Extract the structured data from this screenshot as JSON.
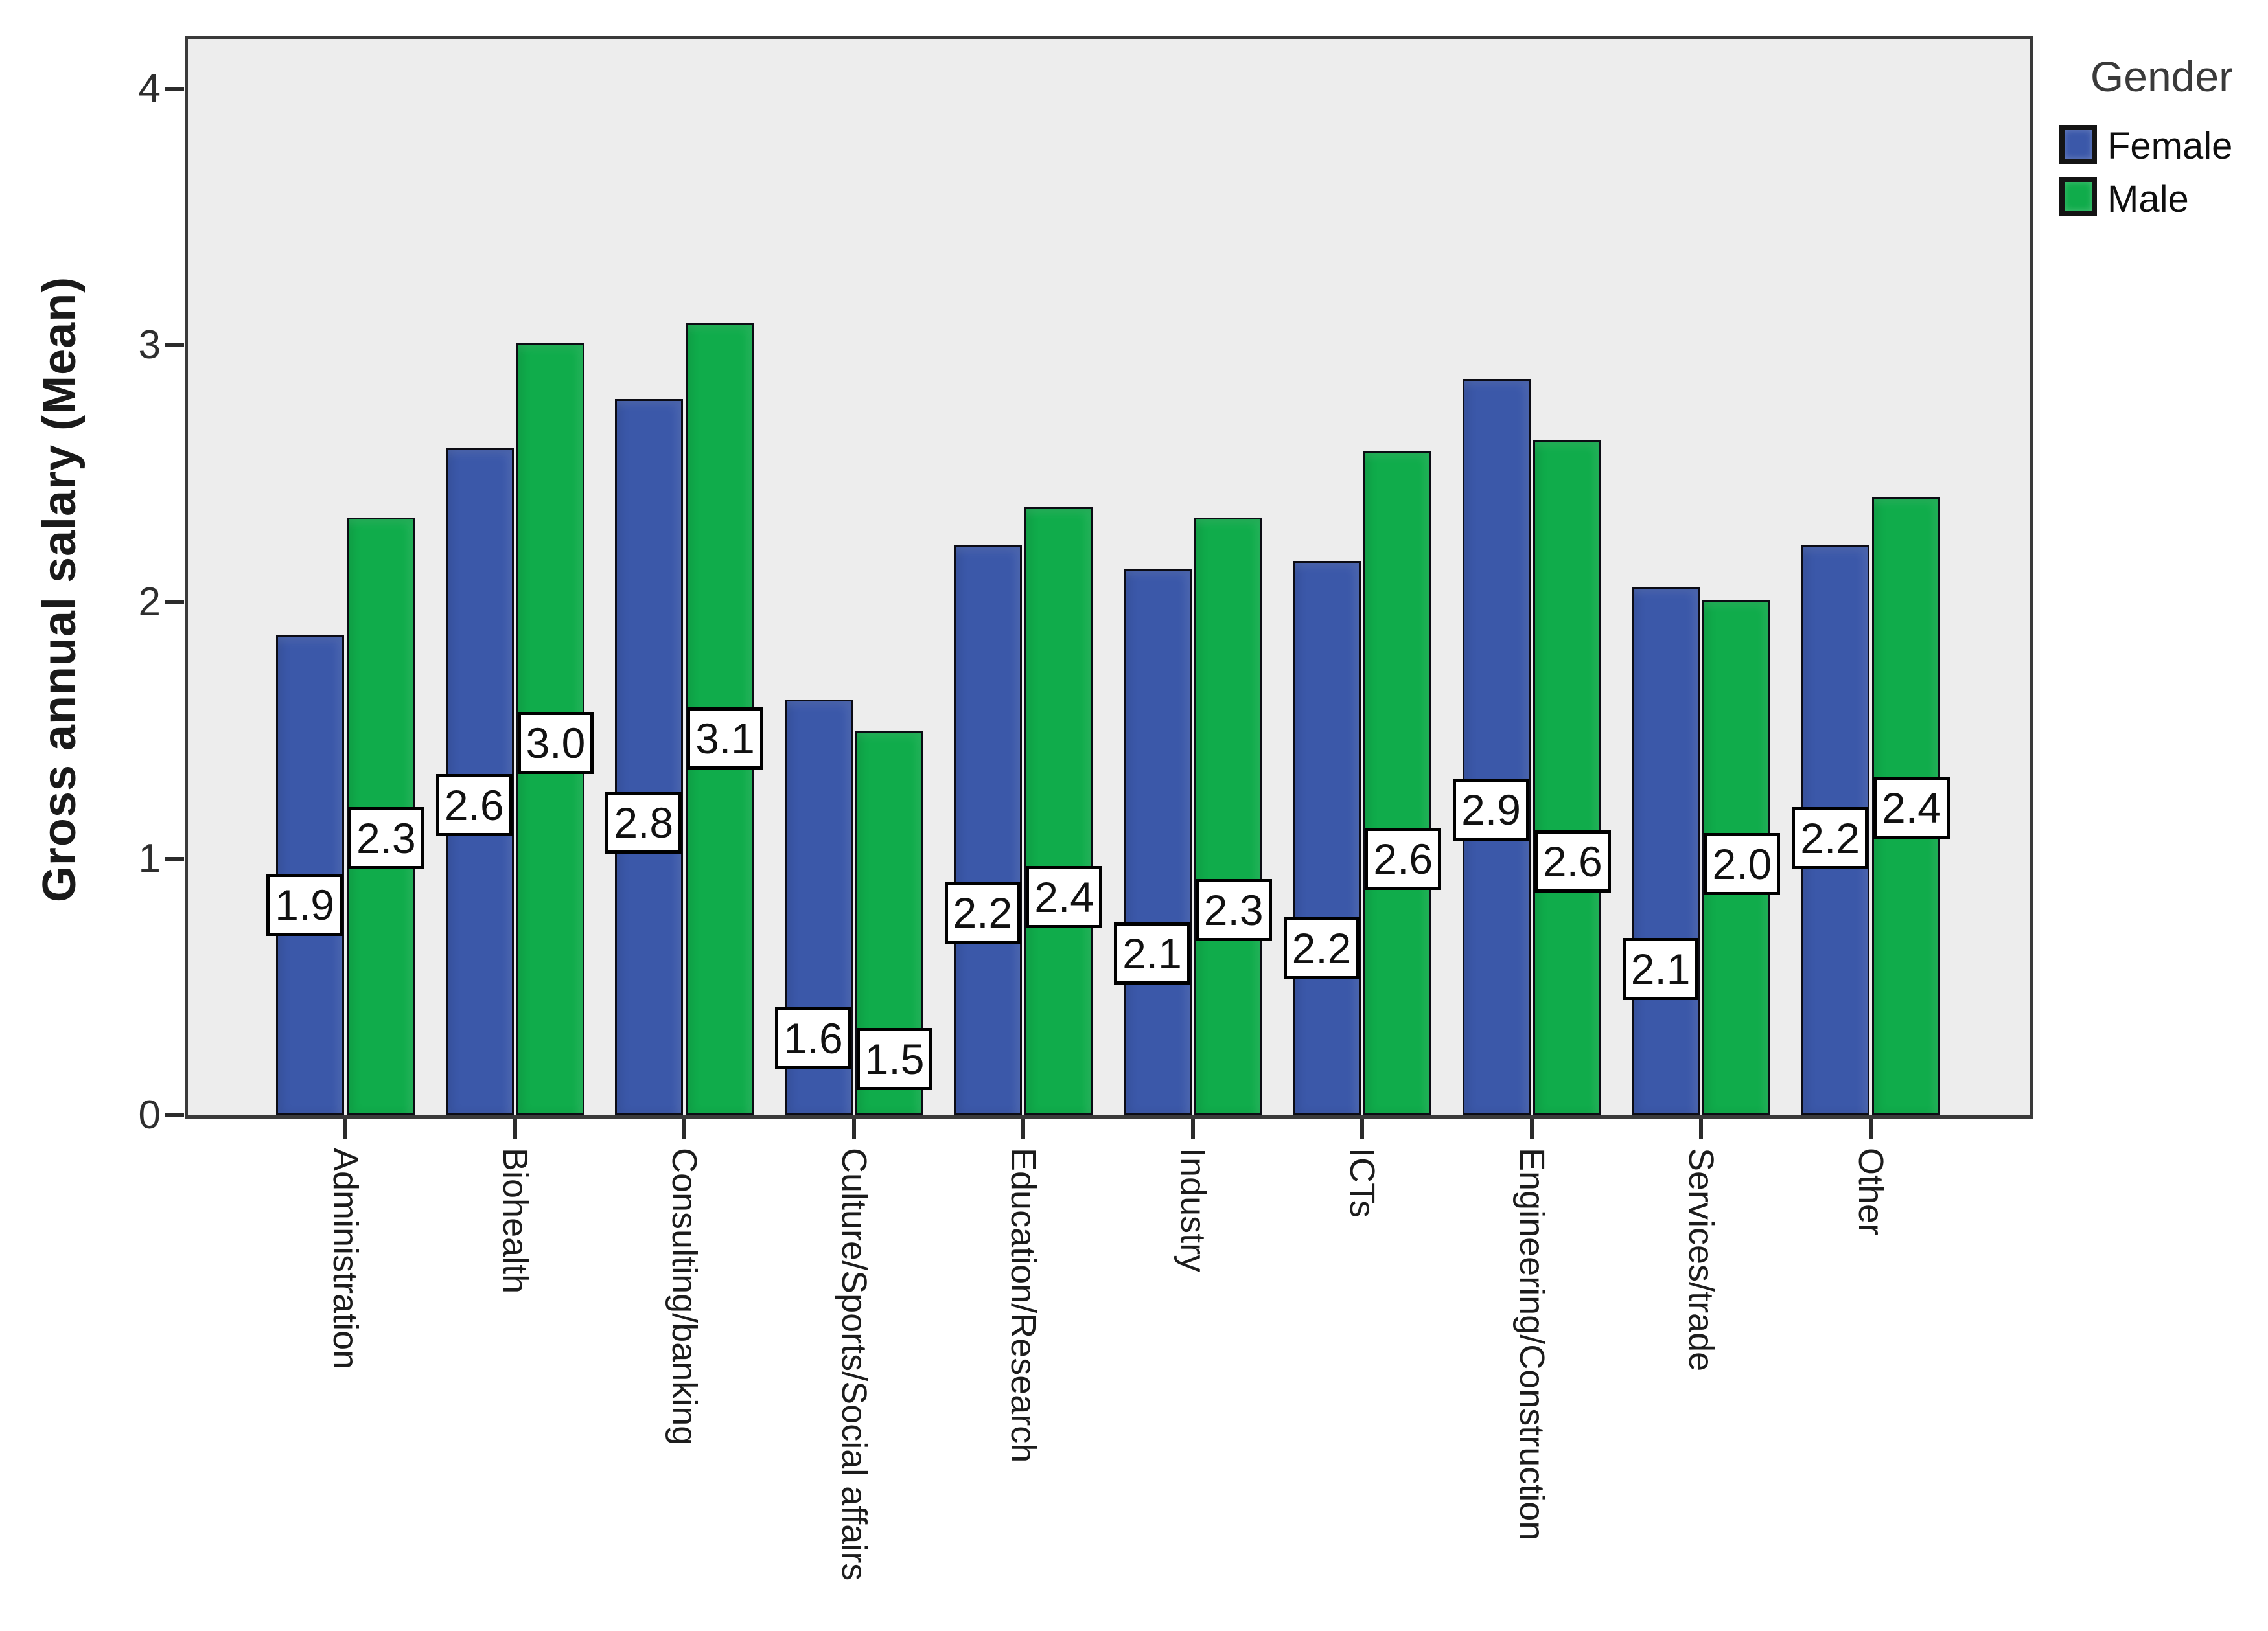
{
  "figure": {
    "background": "#ffffff",
    "plot_background": "#EDEDED",
    "frame_color": "#3a3a3a"
  },
  "y_axis": {
    "title": "Gross annual salary (Mean)",
    "tick_labels": [
      "0",
      "1",
      "2",
      "3",
      "4"
    ]
  },
  "legend": {
    "title": "Gender",
    "items": [
      {
        "label": "Female",
        "color": "#3B58A9"
      },
      {
        "label": "Male",
        "color": "#10AC4B"
      }
    ]
  },
  "chart_data": {
    "type": "bar",
    "title": "",
    "xlabel": "",
    "ylabel": "Gross annual salary (Mean)",
    "ylim": [
      0,
      4
    ],
    "yticks": [
      0,
      1,
      2,
      3,
      4
    ],
    "grid": false,
    "legend_position": "top-right-outside",
    "categories": [
      "Administration",
      "Biohealth",
      "Consulting/banking",
      "Culture/Sports/Social affairs",
      "Education/Research",
      "Industry",
      "ICTs",
      "Engineering/Construction",
      "Services/trade",
      "Other"
    ],
    "series": [
      {
        "name": "Female",
        "color": "#3B58A9",
        "values": [
          1.87,
          2.6,
          2.79,
          1.62,
          2.22,
          2.13,
          2.16,
          2.87,
          2.06,
          2.22
        ],
        "data_labels": [
          "1.9",
          "2.6",
          "2.8",
          "1.6",
          "2.2",
          "2.1",
          "2.2",
          "2.9",
          "2.1",
          "2.2"
        ],
        "label_y_axis_units": [
          0.82,
          1.21,
          1.14,
          0.3,
          0.79,
          0.63,
          0.65,
          1.19,
          0.57,
          1.08
        ]
      },
      {
        "name": "Male",
        "color": "#10AC4B",
        "values": [
          2.33,
          3.01,
          3.09,
          1.5,
          2.37,
          2.33,
          2.59,
          2.63,
          2.01,
          2.41
        ],
        "data_labels": [
          "2.3",
          "3.0",
          "3.1",
          "1.5",
          "2.4",
          "2.3",
          "2.6",
          "2.6",
          "2.0",
          "2.4"
        ],
        "label_y_axis_units": [
          1.08,
          1.45,
          1.47,
          0.22,
          0.85,
          0.8,
          1.0,
          0.99,
          0.98,
          1.2
        ]
      }
    ]
  }
}
